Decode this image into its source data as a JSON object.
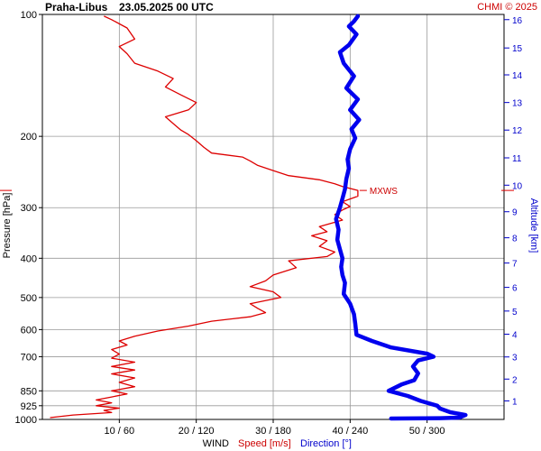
{
  "header": {
    "station": "Praha-Libus",
    "datetime": "23.05.2025 00 UTC",
    "copyright": "CHMI © 2025"
  },
  "chart_data": {
    "type": "line",
    "title": "Praha-Libus   23.05.2025 00 UTC",
    "ylabel": "Pressure [hPa]",
    "y_scale": "log",
    "ylim": [
      1000,
      100
    ],
    "y_ticks": [
      100,
      200,
      300,
      400,
      500,
      600,
      700,
      850,
      925,
      1000
    ],
    "x_tick_labels": [
      "10 / 60",
      "20 / 120",
      "30 / 180",
      "40 / 240",
      "50 / 300"
    ],
    "x_speed_range": [
      0,
      60
    ],
    "x_direction_range": [
      0,
      360
    ],
    "altitude_label": "Altitude [km]",
    "altitude_ticks": [
      1,
      2,
      3,
      4,
      5,
      6,
      7,
      8,
      9,
      10,
      11,
      12,
      13,
      14,
      15,
      16
    ],
    "altitude_points": [
      {
        "km": 1,
        "p": 900
      },
      {
        "km": 2,
        "p": 795
      },
      {
        "km": 3,
        "p": 701
      },
      {
        "km": 4,
        "p": 616
      },
      {
        "km": 5,
        "p": 540
      },
      {
        "km": 6,
        "p": 472
      },
      {
        "km": 7,
        "p": 411
      },
      {
        "km": 8,
        "p": 356
      },
      {
        "km": 9,
        "p": 307
      },
      {
        "km": 10,
        "p": 264
      },
      {
        "km": 11,
        "p": 226
      },
      {
        "km": 12,
        "p": 193
      },
      {
        "km": 13,
        "p": 165
      },
      {
        "km": 14,
        "p": 141
      },
      {
        "km": 15,
        "p": 121
      },
      {
        "km": 16,
        "p": 103
      }
    ],
    "legend": {
      "wind": "WIND",
      "speed": "Speed [m/s]",
      "direction": "Direction [°]"
    },
    "colors": {
      "speed": "#dd0000",
      "direction": "#0000ee",
      "grid": "#999999"
    },
    "grid": true,
    "max_wind": {
      "label": "MXWS",
      "pressure": 272,
      "speed": 41
    },
    "series": [
      {
        "name": "Speed [m/s]",
        "unit": "m/s",
        "points": [
          [
            1,
            990
          ],
          [
            4,
            975
          ],
          [
            9,
            962
          ],
          [
            8,
            950
          ],
          [
            10,
            938
          ],
          [
            7,
            925
          ],
          [
            9,
            910
          ],
          [
            7,
            895
          ],
          [
            9,
            880
          ],
          [
            11,
            865
          ],
          [
            9,
            850
          ],
          [
            12,
            830
          ],
          [
            10,
            810
          ],
          [
            12,
            790
          ],
          [
            9,
            772
          ],
          [
            12,
            755
          ],
          [
            9,
            740
          ],
          [
            12,
            722
          ],
          [
            9,
            706
          ],
          [
            10,
            690
          ],
          [
            9,
            672
          ],
          [
            11,
            655
          ],
          [
            10,
            640
          ],
          [
            12,
            623
          ],
          [
            15,
            605
          ],
          [
            19,
            588
          ],
          [
            22,
            572
          ],
          [
            27,
            558
          ],
          [
            29,
            545
          ],
          [
            28,
            532
          ],
          [
            27,
            518
          ],
          [
            31,
            500
          ],
          [
            30,
            484
          ],
          [
            27,
            470
          ],
          [
            29,
            455
          ],
          [
            30,
            440
          ],
          [
            33,
            422
          ],
          [
            32,
            406
          ],
          [
            37,
            396
          ],
          [
            38,
            386
          ],
          [
            36,
            374
          ],
          [
            37,
            362
          ],
          [
            35,
            352
          ],
          [
            37,
            344
          ],
          [
            36,
            334
          ],
          [
            39,
            322
          ],
          [
            38,
            312
          ],
          [
            39,
            304
          ],
          [
            40,
            298
          ],
          [
            39,
            290
          ],
          [
            41,
            281
          ],
          [
            41,
            272
          ],
          [
            39,
            266
          ],
          [
            38,
            262
          ],
          [
            36,
            256
          ],
          [
            32,
            250
          ],
          [
            30,
            243
          ],
          [
            28,
            236
          ],
          [
            27,
            230
          ],
          [
            26,
            225
          ],
          [
            22,
            220
          ],
          [
            21,
            213
          ],
          [
            20,
            205
          ],
          [
            19,
            198
          ],
          [
            18,
            193
          ],
          [
            17,
            186
          ],
          [
            16,
            179
          ],
          [
            19,
            172
          ],
          [
            20,
            165
          ],
          [
            18,
            158
          ],
          [
            16,
            151
          ],
          [
            17,
            144
          ],
          [
            15,
            138
          ],
          [
            12,
            132
          ],
          [
            11,
            125
          ],
          [
            10,
            120
          ],
          [
            12,
            115
          ],
          [
            11,
            108
          ],
          [
            9,
            103
          ],
          [
            8,
            101
          ]
        ]
      },
      {
        "name": "Direction [°]",
        "unit": "°",
        "points": [
          [
            272,
            995
          ],
          [
            310,
            993
          ],
          [
            325,
            990
          ],
          [
            330,
            975
          ],
          [
            318,
            960
          ],
          [
            310,
            940
          ],
          [
            308,
            925
          ],
          [
            295,
            900
          ],
          [
            285,
            875
          ],
          [
            270,
            850
          ],
          [
            280,
            820
          ],
          [
            290,
            800
          ],
          [
            293,
            770
          ],
          [
            289,
            740
          ],
          [
            293,
            715
          ],
          [
            305,
            700
          ],
          [
            300,
            688
          ],
          [
            272,
            664
          ],
          [
            257,
            640
          ],
          [
            245,
            618
          ],
          [
            244,
            580
          ],
          [
            243,
            550
          ],
          [
            240,
            518
          ],
          [
            235,
            490
          ],
          [
            236,
            460
          ],
          [
            234,
            440
          ],
          [
            233,
            420
          ],
          [
            234,
            400
          ],
          [
            232,
            380
          ],
          [
            230,
            360
          ],
          [
            231,
            340
          ],
          [
            229,
            320
          ],
          [
            232,
            300
          ],
          [
            234,
            285
          ],
          [
            236,
            270
          ],
          [
            237,
            255
          ],
          [
            239,
            240
          ],
          [
            238,
            228
          ],
          [
            240,
            215
          ],
          [
            244,
            202
          ],
          [
            241,
            192
          ],
          [
            247,
            182
          ],
          [
            240,
            172
          ],
          [
            246,
            162
          ],
          [
            237,
            152
          ],
          [
            243,
            142
          ],
          [
            235,
            132
          ],
          [
            232,
            124
          ],
          [
            239,
            119
          ],
          [
            245,
            112
          ],
          [
            239,
            107
          ],
          [
            243,
            104
          ],
          [
            246,
            101
          ]
        ]
      }
    ]
  }
}
